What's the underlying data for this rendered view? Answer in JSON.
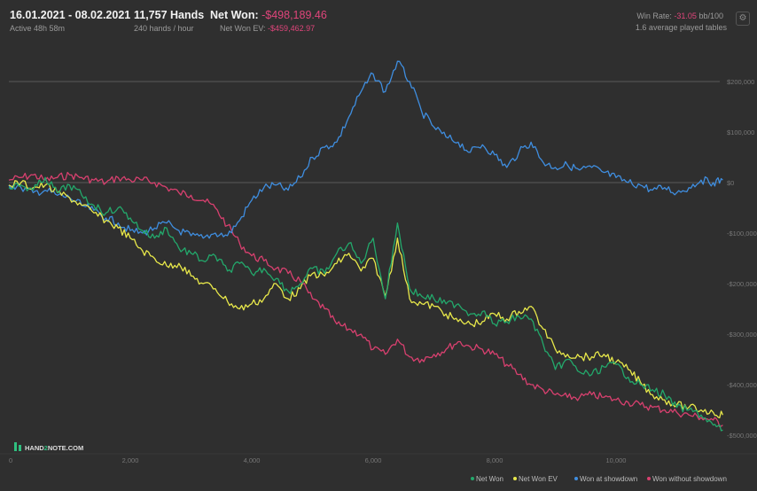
{
  "header": {
    "date_range": "16.01.2021 - 08.02.2021",
    "active": "Active 48h 58m",
    "hands": "11,757 Hands",
    "hands_per_hour": "240 hands / hour",
    "net_won_label": "Net Won:",
    "net_won_value": "-$498,189.46",
    "net_won_ev_label": "Net Won  EV:",
    "net_won_ev_value": "-$459,462.97",
    "win_rate_label": "Win Rate:",
    "win_rate_value": "-31.05",
    "win_rate_unit": "bb/100",
    "avg_tables": "1.6 average played tables"
  },
  "logo": {
    "text_left": "HAND",
    "text_mid": "2",
    "text_right": "NOTE.COM"
  },
  "icons": {
    "settings": "gear-icon"
  },
  "colors": {
    "background": "#2f2f2f",
    "net_won": "#23a86b",
    "net_won_ev": "#e8e84a",
    "showdown": "#3f8ee0",
    "no_showdown": "#d8406f",
    "negative_text": "#e0457b"
  },
  "chart_data": {
    "type": "line",
    "xlim": [
      0,
      11757
    ],
    "ylim": [
      -520000,
      260000
    ],
    "x_ticks": [
      0,
      2000,
      4000,
      6000,
      8000,
      10000
    ],
    "x_tick_labels": [
      "0",
      "2,000",
      "4,000",
      "6,000",
      "8,000",
      "10,000"
    ],
    "y_ticks": [
      200000,
      100000,
      0,
      -100000,
      -200000,
      -300000,
      -400000,
      -500000
    ],
    "y_tick_labels": [
      "$200,000",
      "$100,000",
      "$0",
      "-$100,000",
      "-$200,000",
      "-$300,000",
      "-$400,000",
      "-$500,000"
    ],
    "grid": "horizontal at $200,000 and $0",
    "legend_position": "bottom-right",
    "series": [
      {
        "name": "Net Won",
        "color": "#23a86b",
        "x": [
          0,
          200,
          400,
          600,
          800,
          1000,
          1200,
          1400,
          1600,
          1800,
          2000,
          2200,
          2400,
          2600,
          2800,
          3000,
          3200,
          3400,
          3600,
          3800,
          4000,
          4200,
          4400,
          4600,
          4800,
          5000,
          5200,
          5400,
          5600,
          5800,
          6000,
          6200,
          6400,
          6600,
          6800,
          7000,
          7200,
          7400,
          7600,
          7800,
          8000,
          8200,
          8400,
          8600,
          8800,
          9000,
          9200,
          9400,
          9600,
          9800,
          10000,
          10200,
          10400,
          10600,
          10800,
          11000,
          11200,
          11400,
          11600,
          11757
        ],
        "y": [
          -10000,
          -5000,
          -15000,
          10000,
          -20000,
          -5000,
          -25000,
          -45000,
          -60000,
          -50000,
          -70000,
          -95000,
          -110000,
          -90000,
          -130000,
          -140000,
          -155000,
          -145000,
          -175000,
          -160000,
          -180000,
          -170000,
          -190000,
          -215000,
          -200000,
          -170000,
          -180000,
          -140000,
          -120000,
          -160000,
          -110000,
          -230000,
          -80000,
          -210000,
          -225000,
          -230000,
          -240000,
          -240000,
          -260000,
          -255000,
          -280000,
          -275000,
          -265000,
          -270000,
          -320000,
          -370000,
          -350000,
          -375000,
          -380000,
          -365000,
          -360000,
          -385000,
          -400000,
          -410000,
          -420000,
          -445000,
          -450000,
          -460000,
          -480000,
          -490000
        ]
      },
      {
        "name": "Net Won  EV",
        "color": "#e8e84a",
        "x": [
          0,
          200,
          400,
          600,
          800,
          1000,
          1200,
          1400,
          1600,
          1800,
          2000,
          2200,
          2400,
          2600,
          2800,
          3000,
          3200,
          3400,
          3600,
          3800,
          4000,
          4200,
          4400,
          4600,
          4800,
          5000,
          5200,
          5400,
          5600,
          5800,
          6000,
          6200,
          6400,
          6600,
          6800,
          7000,
          7200,
          7400,
          7600,
          7800,
          8000,
          8200,
          8400,
          8600,
          8800,
          9000,
          9200,
          9400,
          9600,
          9800,
          10000,
          10200,
          10400,
          10600,
          10800,
          11000,
          11200,
          11400,
          11600,
          11757
        ],
        "y": [
          -5000,
          0,
          -10000,
          -5000,
          -20000,
          -30000,
          -45000,
          -60000,
          -75000,
          -90000,
          -110000,
          -135000,
          -150000,
          -165000,
          -160000,
          -185000,
          -200000,
          -210000,
          -235000,
          -250000,
          -240000,
          -230000,
          -200000,
          -230000,
          -210000,
          -180000,
          -185000,
          -160000,
          -140000,
          -175000,
          -150000,
          -225000,
          -110000,
          -230000,
          -240000,
          -245000,
          -260000,
          -275000,
          -280000,
          -275000,
          -260000,
          -270000,
          -255000,
          -245000,
          -290000,
          -330000,
          -340000,
          -345000,
          -345000,
          -340000,
          -355000,
          -370000,
          -395000,
          -420000,
          -430000,
          -440000,
          -445000,
          -450000,
          -455000,
          -460000
        ]
      },
      {
        "name": "Won at showdown",
        "color": "#3f8ee0",
        "x": [
          0,
          200,
          400,
          600,
          800,
          1000,
          1200,
          1400,
          1600,
          1800,
          2000,
          2200,
          2400,
          2600,
          2800,
          3000,
          3200,
          3400,
          3600,
          3800,
          4000,
          4200,
          4400,
          4600,
          4800,
          5000,
          5200,
          5400,
          5600,
          5800,
          6000,
          6200,
          6400,
          6600,
          6800,
          7000,
          7200,
          7400,
          7600,
          7800,
          8000,
          8200,
          8400,
          8600,
          8800,
          9000,
          9200,
          9400,
          9600,
          9800,
          10000,
          10200,
          10400,
          10600,
          10800,
          11000,
          11200,
          11400,
          11600,
          11757
        ],
        "y": [
          -5000,
          -10000,
          -20000,
          -15000,
          -25000,
          -30000,
          -45000,
          -55000,
          -70000,
          -80000,
          -95000,
          -100000,
          -90000,
          -80000,
          -95000,
          -105000,
          -110000,
          -100000,
          -105000,
          -75000,
          -35000,
          -10000,
          -5000,
          -15000,
          10000,
          50000,
          70000,
          80000,
          130000,
          180000,
          215000,
          180000,
          240000,
          200000,
          140000,
          110000,
          90000,
          80000,
          60000,
          75000,
          55000,
          30000,
          60000,
          80000,
          40000,
          30000,
          35000,
          25000,
          30000,
          20000,
          10000,
          0,
          -5000,
          -15000,
          -10000,
          -20000,
          -10000,
          5000,
          0,
          5000
        ]
      },
      {
        "name": "Won without showdown",
        "color": "#d8406f",
        "x": [
          0,
          200,
          400,
          600,
          800,
          1000,
          1200,
          1400,
          1600,
          1800,
          2000,
          2200,
          2400,
          2600,
          2800,
          3000,
          3200,
          3400,
          3600,
          3800,
          4000,
          4200,
          4400,
          4600,
          4800,
          5000,
          5200,
          5400,
          5600,
          5800,
          6000,
          6200,
          6400,
          6600,
          6800,
          7000,
          7200,
          7400,
          7600,
          7800,
          8000,
          8200,
          8400,
          8600,
          8800,
          9000,
          9200,
          9400,
          9600,
          9800,
          10000,
          10200,
          10400,
          10600,
          10800,
          11000,
          11200,
          11400,
          11600,
          11757
        ],
        "y": [
          5000,
          10000,
          15000,
          5000,
          10000,
          15000,
          10000,
          5000,
          0,
          10000,
          5000,
          5000,
          0,
          -10000,
          -20000,
          -25000,
          -35000,
          -50000,
          -85000,
          -120000,
          -145000,
          -155000,
          -170000,
          -180000,
          -195000,
          -230000,
          -250000,
          -280000,
          -290000,
          -300000,
          -330000,
          -340000,
          -310000,
          -345000,
          -350000,
          -340000,
          -330000,
          -315000,
          -325000,
          -330000,
          -340000,
          -360000,
          -380000,
          -400000,
          -410000,
          -420000,
          -425000,
          -425000,
          -420000,
          -425000,
          -430000,
          -435000,
          -440000,
          -445000,
          -450000,
          -455000,
          -460000,
          -465000,
          -470000,
          -480000
        ]
      }
    ]
  }
}
